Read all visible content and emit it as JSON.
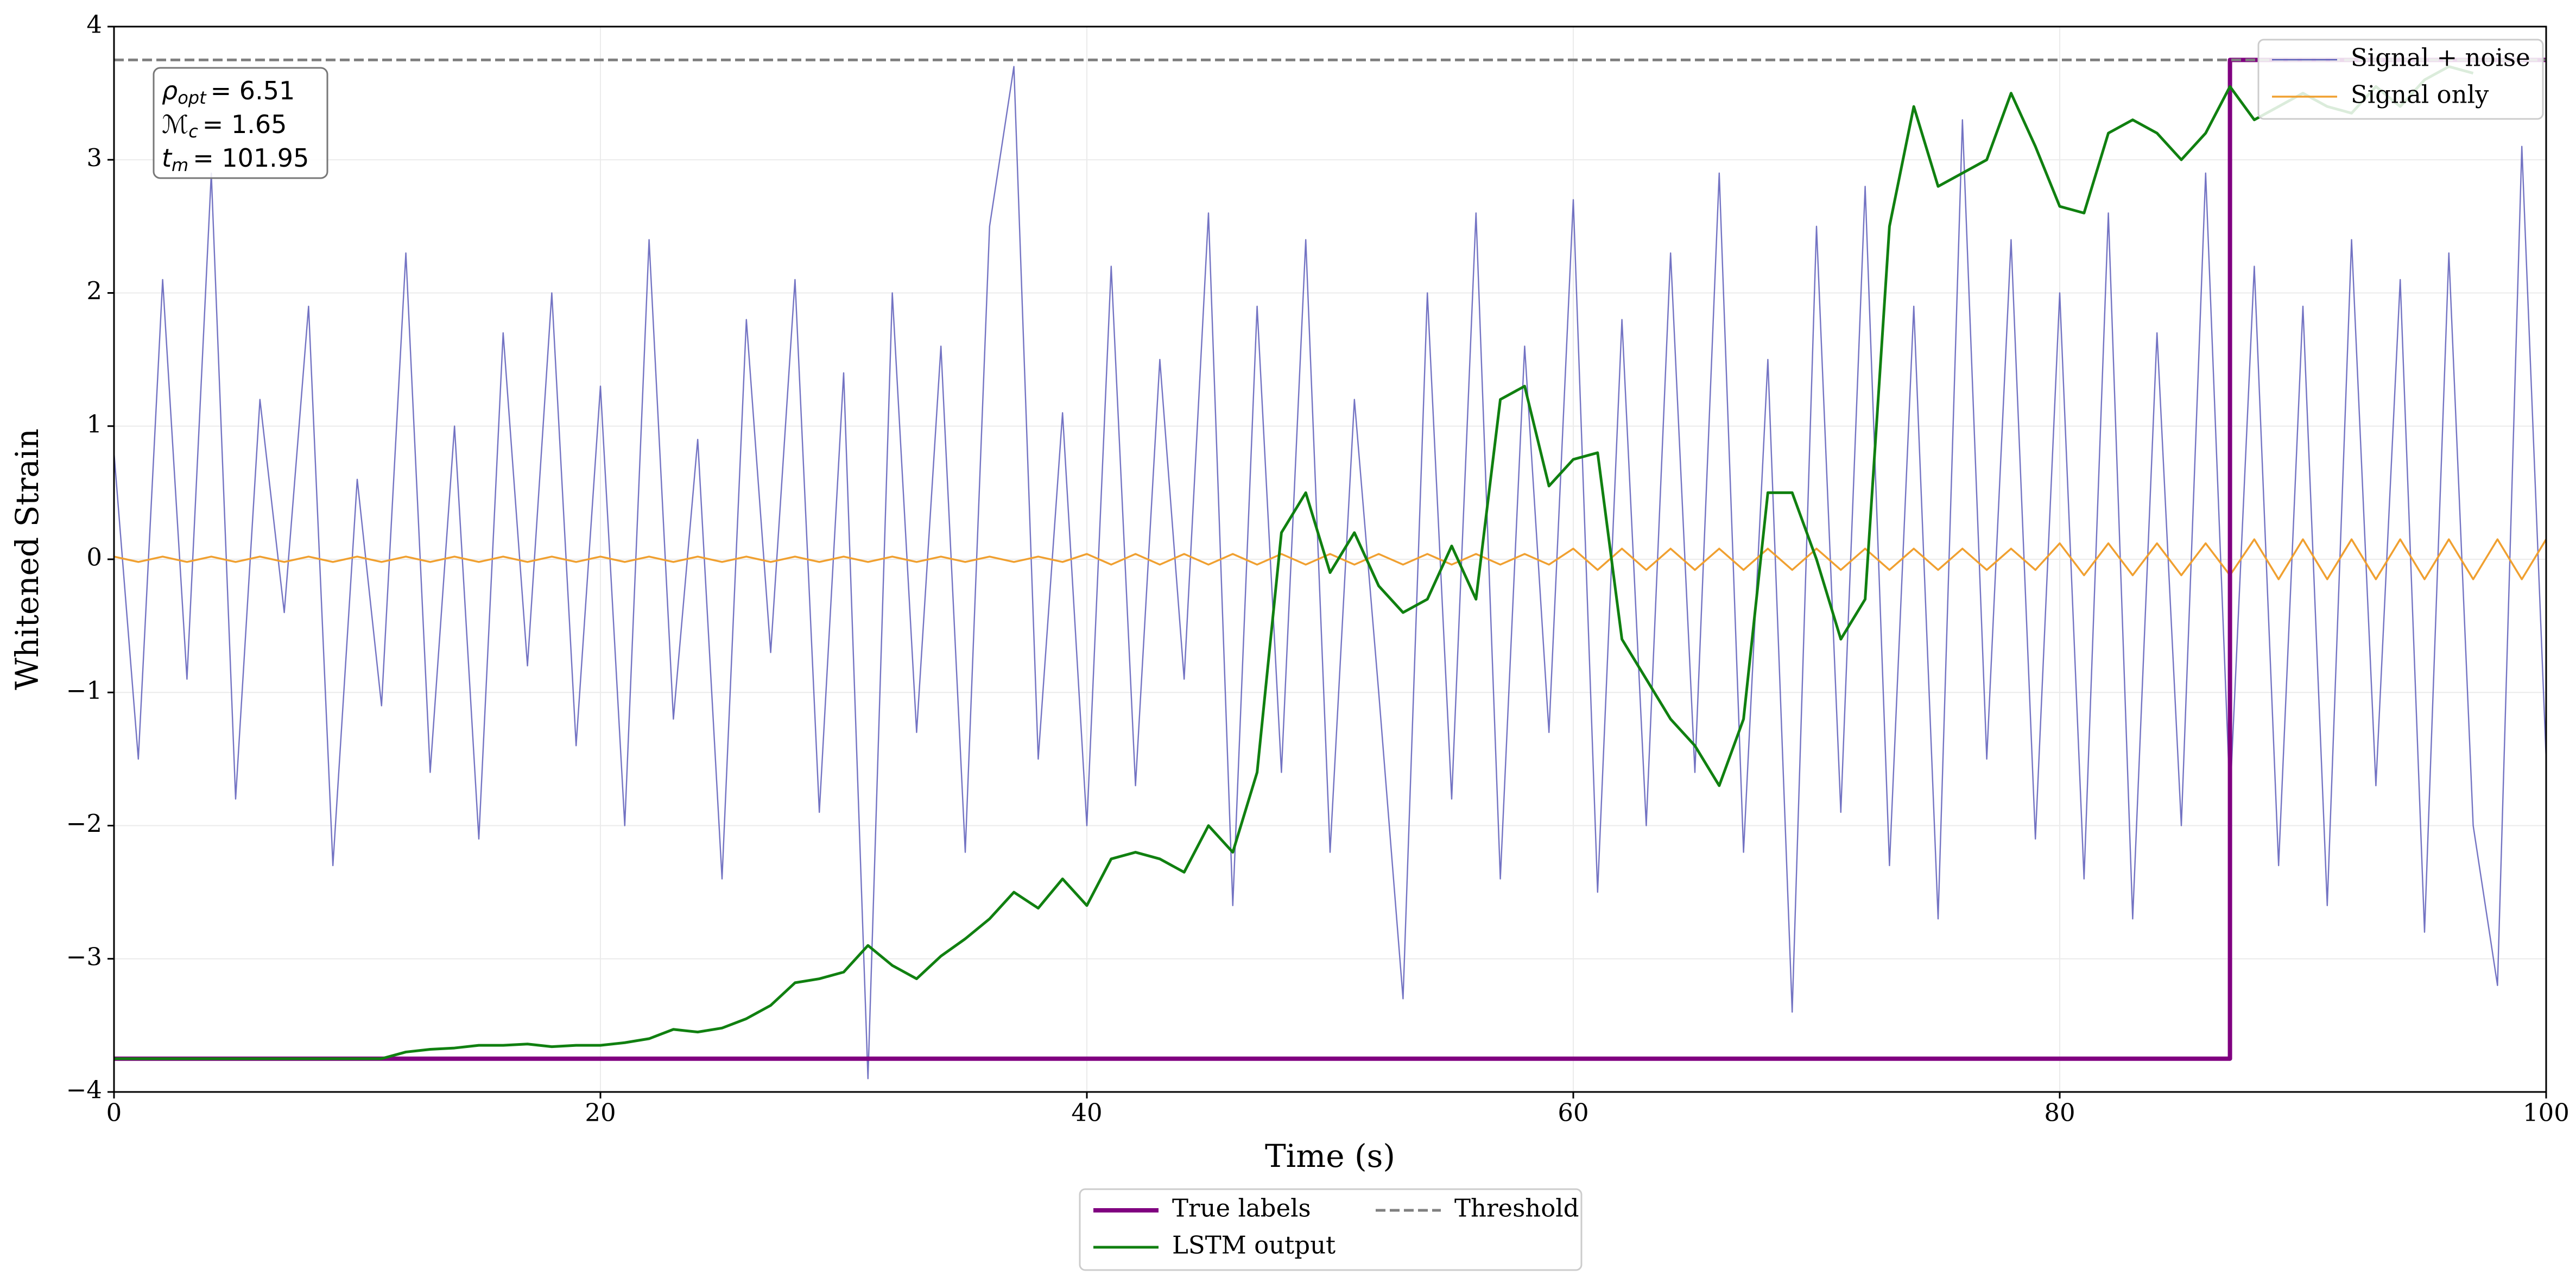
{
  "chart_data": {
    "type": "line",
    "xlabel": "Time (s)",
    "ylabel": "Whitened Strain",
    "xlim": [
      0,
      100
    ],
    "xticks": [
      0,
      20,
      40,
      60,
      80,
      100
    ],
    "ylim": [
      -4,
      4
    ],
    "yticks": [
      {
        "value": -4,
        "label": "−4"
      },
      {
        "value": -3,
        "label": "−3"
      },
      {
        "value": -2,
        "label": "−2"
      },
      {
        "value": -1,
        "label": "−1"
      },
      0,
      1,
      2,
      3,
      4
    ],
    "grid": true,
    "annotations": [
      {
        "symbol": "ρ",
        "subscript": "opt",
        "text": "= 6.51"
      },
      {
        "symbol": "ℳ",
        "subscript": "c",
        "text": "= 1.65"
      },
      {
        "symbol": "t",
        "subscript": "m",
        "text": "= 101.95"
      }
    ],
    "series": [
      {
        "name": "Signal + noise",
        "color": "#5a5ab8",
        "legend": "upper right",
        "x": [
          0,
          1,
          2,
          3,
          4,
          5,
          6,
          7,
          8,
          9,
          10,
          11,
          12,
          13,
          14,
          15,
          16,
          17,
          18,
          19,
          20,
          21,
          22,
          23,
          24,
          25,
          26,
          27,
          28,
          29,
          30,
          31,
          32,
          33,
          34,
          35,
          36,
          37,
          38,
          39,
          40,
          41,
          42,
          43,
          44,
          45,
          46,
          47,
          48,
          49,
          50,
          51,
          52,
          53,
          54,
          55,
          56,
          57,
          58,
          59,
          60,
          61,
          62,
          63,
          64,
          65,
          66,
          67,
          68,
          69,
          70,
          71,
          72,
          73,
          74,
          75,
          76,
          77,
          78,
          79,
          80,
          81,
          82,
          83,
          84,
          85,
          86,
          87,
          88,
          89,
          90,
          91,
          92,
          93,
          94,
          95,
          96,
          97,
          98,
          99,
          100
        ],
        "values": [
          0.8,
          -1.5,
          2.1,
          -0.9,
          2.9,
          -1.8,
          1.2,
          -0.4,
          1.9,
          -2.3,
          0.6,
          -1.1,
          2.3,
          -1.6,
          1.0,
          -2.1,
          1.7,
          -0.8,
          2.0,
          -1.4,
          1.3,
          -2.0,
          2.4,
          -1.2,
          0.9,
          -2.4,
          1.8,
          -0.7,
          2.1,
          -1.9,
          1.4,
          -3.9,
          2.0,
          -1.3,
          1.6,
          -2.2,
          2.5,
          3.7,
          -1.5,
          1.1,
          -2.0,
          2.2,
          -1.7,
          1.5,
          -0.9,
          2.6,
          -2.6,
          1.9,
          -1.6,
          2.4,
          -2.2,
          1.2,
          -1.0,
          -3.3,
          2.0,
          -1.8,
          2.6,
          -2.4,
          1.6,
          -1.3,
          2.7,
          -2.5,
          1.8,
          -2.0,
          2.3,
          -1.6,
          2.9,
          -2.2,
          1.5,
          -3.4,
          2.5,
          -1.9,
          2.8,
          -2.3,
          1.9,
          -2.7,
          3.3,
          -1.5,
          2.4,
          -2.1,
          2.0,
          -2.4,
          2.6,
          -2.7,
          1.7,
          -2.0,
          2.9,
          -1.8,
          2.2,
          -2.3,
          1.9,
          -2.6,
          2.4,
          -1.7,
          2.1,
          -2.8,
          2.3,
          -2.0,
          -3.2,
          3.1,
          -1.5
        ]
      },
      {
        "name": "Signal only",
        "color": "#f0a030",
        "legend": "upper right",
        "x": [
          0,
          1,
          2,
          3,
          4,
          5,
          6,
          7,
          8,
          9,
          10,
          11,
          12,
          13,
          14,
          15,
          16,
          17,
          18,
          19,
          20,
          21,
          22,
          23,
          24,
          25,
          26,
          27,
          28,
          29,
          30,
          31,
          32,
          33,
          34,
          35,
          36,
          37,
          38,
          39,
          40,
          41,
          42,
          43,
          44,
          45,
          46,
          47,
          48,
          49,
          50,
          51,
          52,
          53,
          54,
          55,
          56,
          57,
          58,
          59,
          60,
          61,
          62,
          63,
          64,
          65,
          66,
          67,
          68,
          69,
          70,
          71,
          72,
          73,
          74,
          75,
          76,
          77,
          78,
          79,
          80,
          81,
          82,
          83,
          84,
          85,
          86,
          87,
          88,
          89,
          90,
          91,
          92,
          93,
          94,
          95,
          96,
          97,
          98,
          99,
          100
        ],
        "values": [
          0.02,
          -0.02,
          0.02,
          -0.02,
          0.02,
          -0.02,
          0.02,
          -0.02,
          0.02,
          -0.02,
          0.02,
          -0.02,
          0.02,
          -0.02,
          0.02,
          -0.02,
          0.02,
          -0.02,
          0.02,
          -0.02,
          0.02,
          -0.02,
          0.02,
          -0.02,
          0.02,
          -0.02,
          0.02,
          -0.02,
          0.02,
          -0.02,
          0.02,
          -0.02,
          0.02,
          -0.02,
          0.02,
          -0.02,
          0.02,
          -0.02,
          0.02,
          -0.02,
          0.04,
          -0.04,
          0.04,
          -0.04,
          0.04,
          -0.04,
          0.04,
          -0.04,
          0.04,
          -0.04,
          0.04,
          -0.04,
          0.04,
          -0.04,
          0.04,
          -0.04,
          0.04,
          -0.04,
          0.04,
          -0.04,
          0.08,
          -0.08,
          0.08,
          -0.08,
          0.08,
          -0.08,
          0.08,
          -0.08,
          0.08,
          -0.08,
          0.08,
          -0.08,
          0.08,
          -0.08,
          0.08,
          -0.08,
          0.08,
          -0.08,
          0.08,
          -0.08,
          0.12,
          -0.12,
          0.12,
          -0.12,
          0.12,
          -0.12,
          0.12,
          -0.12,
          0.15,
          -0.15,
          0.15,
          -0.15,
          0.15,
          -0.15,
          0.15,
          -0.15,
          0.15,
          -0.15,
          0.15,
          -0.15,
          0.15
        ]
      },
      {
        "name": "True labels",
        "color": "#800080",
        "legend": "lower center",
        "x": [
          0,
          87,
          87,
          100
        ],
        "values": [
          -3.75,
          -3.75,
          3.75,
          3.75
        ]
      },
      {
        "name": "LSTM output",
        "color": "#108010",
        "legend": "lower center",
        "x": [
          0,
          11,
          12,
          13,
          14,
          15,
          16,
          17,
          18,
          19,
          20,
          21,
          22,
          23,
          24,
          25,
          26,
          27,
          28,
          29,
          30,
          31,
          32,
          33,
          34,
          35,
          36,
          37,
          38,
          39,
          40,
          41,
          42,
          43,
          44,
          45,
          46,
          47,
          48,
          49,
          50,
          51,
          52,
          53,
          54,
          55,
          56,
          57,
          58,
          59,
          60,
          61,
          62,
          63,
          64,
          65,
          66,
          67,
          68,
          69,
          70,
          71,
          72,
          73,
          74,
          75,
          76,
          77,
          78,
          79,
          80,
          81,
          82,
          83,
          84,
          85,
          86,
          87,
          88,
          89,
          90,
          91,
          92,
          93,
          94,
          95,
          96,
          97
        ],
        "values": [
          -3.75,
          -3.75,
          -3.7,
          -3.68,
          -3.67,
          -3.65,
          -3.65,
          -3.64,
          -3.66,
          -3.65,
          -3.65,
          -3.63,
          -3.6,
          -3.53,
          -3.55,
          -3.52,
          -3.45,
          -3.35,
          -3.18,
          -3.15,
          -3.1,
          -2.9,
          -3.05,
          -3.15,
          -2.98,
          -2.85,
          -2.7,
          -2.5,
          -2.62,
          -2.4,
          -2.6,
          -2.25,
          -2.2,
          -2.25,
          -2.35,
          -2.0,
          -2.2,
          -1.6,
          0.2,
          0.5,
          -0.1,
          0.2,
          -0.2,
          -0.4,
          -0.3,
          0.1,
          -0.3,
          1.2,
          1.3,
          0.55,
          0.75,
          0.8,
          -0.6,
          -0.9,
          -1.2,
          -1.4,
          -1.7,
          -1.2,
          0.5,
          0.5,
          0.0,
          -0.6,
          -0.3,
          2.5,
          3.4,
          2.8,
          2.9,
          3.0,
          3.5,
          3.1,
          2.65,
          2.6,
          3.2,
          3.3,
          3.2,
          3.0,
          3.2,
          3.55,
          3.3,
          3.4,
          3.5,
          3.4,
          3.35,
          3.55,
          3.4,
          3.6,
          3.7,
          3.65
        ]
      },
      {
        "name": "Threshold",
        "color": "#808080",
        "dash": true,
        "legend": "lower center",
        "x": [
          0,
          100
        ],
        "values": [
          3.75,
          3.75
        ]
      }
    ]
  }
}
